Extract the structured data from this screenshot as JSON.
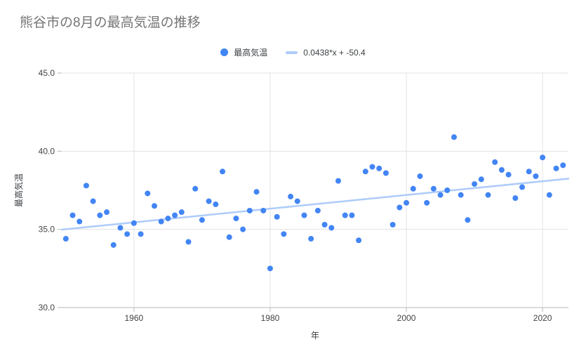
{
  "title": "熊谷市の8月の最高気温の推移",
  "colors": {
    "point": "#4285F4",
    "trendline": "#AECBFA",
    "grid": "#E3E3E3",
    "axis": "#B7B7B7",
    "title_text": "#757575",
    "tick_text": "#424242",
    "axis_label_text": "#3C4043",
    "legend_text": "#3C4043",
    "background": "#FFFFFF"
  },
  "legend": {
    "series_label": "最高気温",
    "trendline_label": "0.0438*x + -50.4"
  },
  "chart_data": {
    "type": "scatter",
    "title": "熊谷市の8月の最高気温の推移",
    "xlabel": "年",
    "ylabel": "最高気温",
    "xlim": [
      1949.4,
      2023.8
    ],
    "ylim": [
      30,
      45
    ],
    "grid": true,
    "legend_position": "top-center",
    "x_ticks": [
      {
        "v": 1960,
        "label": "1960"
      },
      {
        "v": 1980,
        "label": "1980"
      },
      {
        "v": 2000,
        "label": "2000"
      },
      {
        "v": 2020,
        "label": "2020"
      }
    ],
    "y_ticks": [
      {
        "v": 30,
        "label": "30.0"
      },
      {
        "v": 35,
        "label": "35.0"
      },
      {
        "v": 40,
        "label": "40.0"
      },
      {
        "v": 45,
        "label": "45.0"
      }
    ],
    "series": [
      {
        "name": "最高気温",
        "color": "#4285F4",
        "x": [
          1950,
          1951,
          1952,
          1953,
          1954,
          1955,
          1956,
          1957,
          1958,
          1959,
          1960,
          1961,
          1962,
          1963,
          1964,
          1965,
          1966,
          1967,
          1968,
          1969,
          1970,
          1971,
          1972,
          1973,
          1974,
          1975,
          1976,
          1977,
          1978,
          1979,
          1980,
          1981,
          1982,
          1983,
          1984,
          1985,
          1986,
          1987,
          1988,
          1989,
          1990,
          1991,
          1992,
          1993,
          1994,
          1995,
          1996,
          1997,
          1998,
          1999,
          2000,
          2001,
          2002,
          2003,
          2004,
          2005,
          2006,
          2007,
          2008,
          2009,
          2010,
          2011,
          2012,
          2013,
          2014,
          2015,
          2016,
          2017,
          2018,
          2019,
          2020,
          2021,
          2022,
          2023
        ],
        "y": [
          34.4,
          35.9,
          35.5,
          37.8,
          36.8,
          35.9,
          36.1,
          34.0,
          35.1,
          34.7,
          35.4,
          34.7,
          37.3,
          36.5,
          35.5,
          35.7,
          35.9,
          36.1,
          34.2,
          37.6,
          35.6,
          36.8,
          36.6,
          38.7,
          34.5,
          35.7,
          35.0,
          36.2,
          37.4,
          36.2,
          32.5,
          35.8,
          34.7,
          37.1,
          36.8,
          35.9,
          34.4,
          36.2,
          35.3,
          35.1,
          38.1,
          35.9,
          35.9,
          34.3,
          38.7,
          39.0,
          38.9,
          38.6,
          35.3,
          36.4,
          36.7,
          37.6,
          38.4,
          36.7,
          37.6,
          37.2,
          37.5,
          40.9,
          37.2,
          35.6,
          37.9,
          38.2,
          37.2,
          39.3,
          38.8,
          38.5,
          37.0,
          37.7,
          38.7,
          38.4,
          39.6,
          37.2,
          38.9,
          39.1
        ]
      }
    ],
    "trendline": {
      "label": "0.0438*x + -50.4",
      "slope": 0.0438,
      "intercept": -50.4,
      "color": "#AECBFA"
    }
  }
}
